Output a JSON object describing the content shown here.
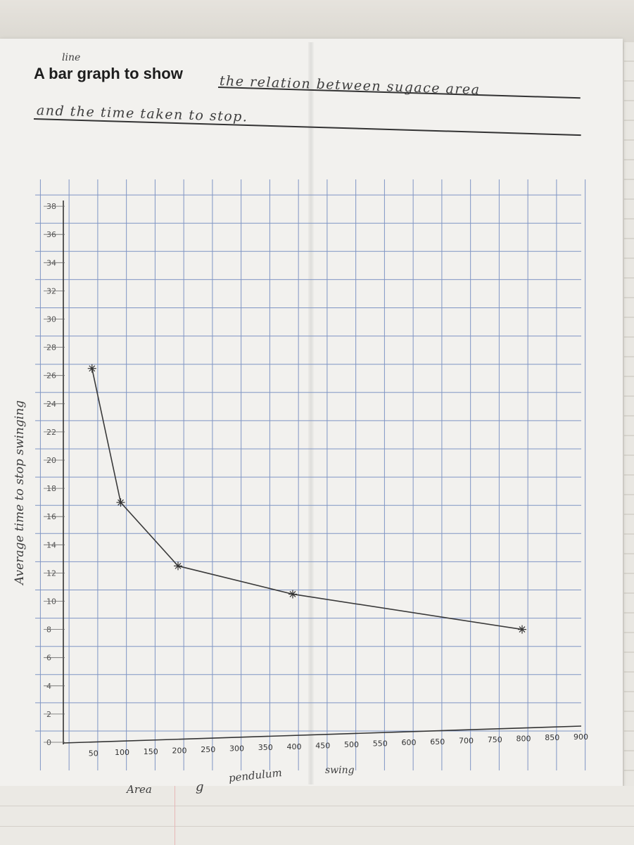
{
  "header": {
    "printed_title": "A bar graph to show",
    "inserted_word": "line",
    "line1": "the relation between sugace area",
    "line2": "and the time taken to stop."
  },
  "chart_data": {
    "type": "line",
    "title": "A bar graph to show the relation between sugace area and the time taken to stop.",
    "xlabel_parts": [
      "Area",
      "g",
      "pendulum",
      "swing"
    ],
    "ylabel": "Average time to stop swinging",
    "x_ticks": [
      "50",
      "100",
      "150",
      "200",
      "250",
      "300",
      "350",
      "400",
      "450",
      "500",
      "550",
      "600",
      "650",
      "700",
      "750",
      "800",
      "850",
      "900"
    ],
    "y_ticks": [
      "0",
      "2",
      "4",
      "6",
      "8",
      "10",
      "12",
      "14",
      "16",
      "18",
      "20",
      "22",
      "24",
      "26",
      "28",
      "30",
      "32",
      "34",
      "36",
      "38"
    ],
    "xlim": [
      0,
      900
    ],
    "ylim": [
      0,
      38
    ],
    "grid": true,
    "series": [
      {
        "x": [
          50,
          100,
          200,
          400,
          800
        ],
        "y": [
          26.5,
          17,
          12.5,
          10.5,
          8
        ]
      }
    ]
  }
}
